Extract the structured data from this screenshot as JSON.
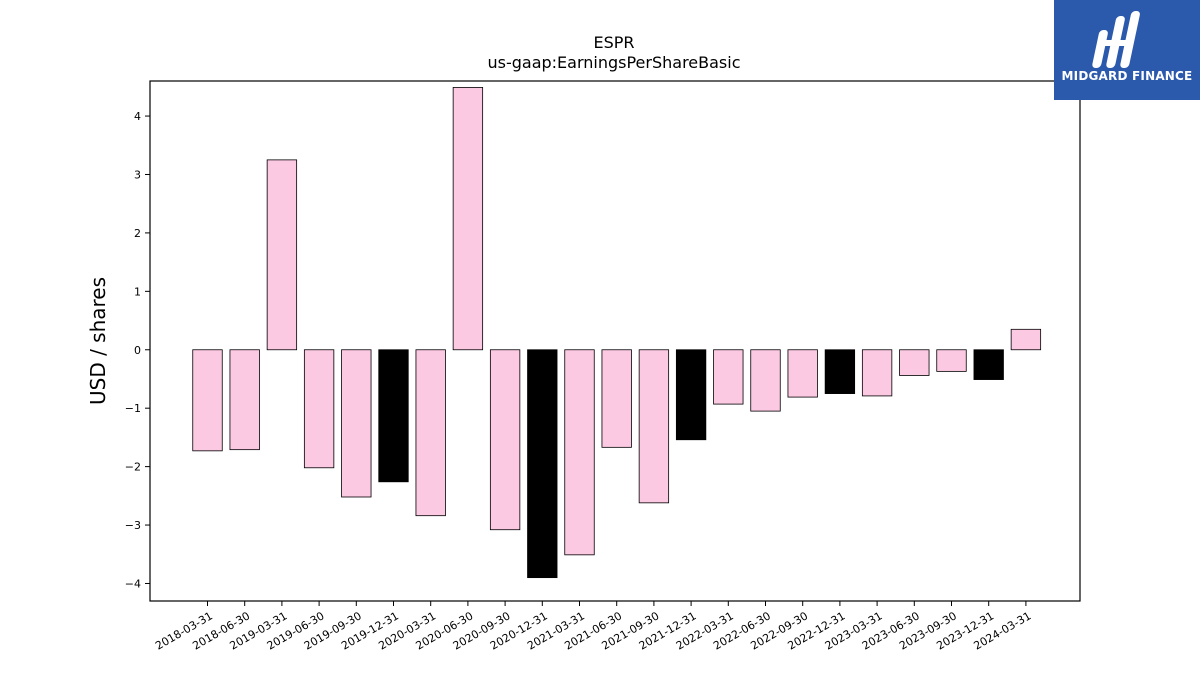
{
  "chart_data": {
    "type": "bar",
    "title": "ESPR",
    "subtitle": "us-gaap:EarningsPerShareBasic",
    "xlabel": "",
    "ylabel": "USD / shares",
    "ylim": [
      -4.3,
      4.6
    ],
    "yticks": [
      -4,
      -3,
      -2,
      -1,
      0,
      1,
      2,
      3,
      4
    ],
    "ytick_labels": [
      "−4",
      "−3",
      "−2",
      "−1",
      "0",
      "1",
      "2",
      "3",
      "4"
    ],
    "grid": false,
    "categories": [
      "2018-03-31",
      "2018-06-30",
      "2019-03-31",
      "2019-06-30",
      "2019-09-30",
      "2019-12-31",
      "2020-03-31",
      "2020-06-30",
      "2020-09-30",
      "2020-12-31",
      "2021-03-31",
      "2021-06-30",
      "2021-09-30",
      "2021-12-31",
      "2022-03-31",
      "2022-06-30",
      "2022-09-30",
      "2022-12-31",
      "2023-03-31",
      "2023-06-30",
      "2023-09-30",
      "2023-12-31",
      "2024-03-31"
    ],
    "values": [
      -1.73,
      -1.71,
      3.25,
      -2.02,
      -2.52,
      -2.26,
      -2.84,
      4.49,
      -3.08,
      -3.9,
      -3.51,
      -1.67,
      -2.62,
      -1.54,
      -0.93,
      -1.05,
      -0.81,
      -0.75,
      -0.79,
      -0.44,
      -0.37,
      -0.51,
      0.35
    ],
    "year_end": [
      false,
      false,
      false,
      false,
      false,
      true,
      false,
      false,
      false,
      true,
      false,
      false,
      false,
      true,
      false,
      false,
      false,
      true,
      false,
      false,
      false,
      true,
      false
    ],
    "colors": {
      "quarter": "#fcc9e3",
      "year_end": "#000000",
      "edge": "#000000"
    }
  },
  "brand": {
    "name": "MIDGARD FINANCE",
    "color": "#2b5aad"
  }
}
